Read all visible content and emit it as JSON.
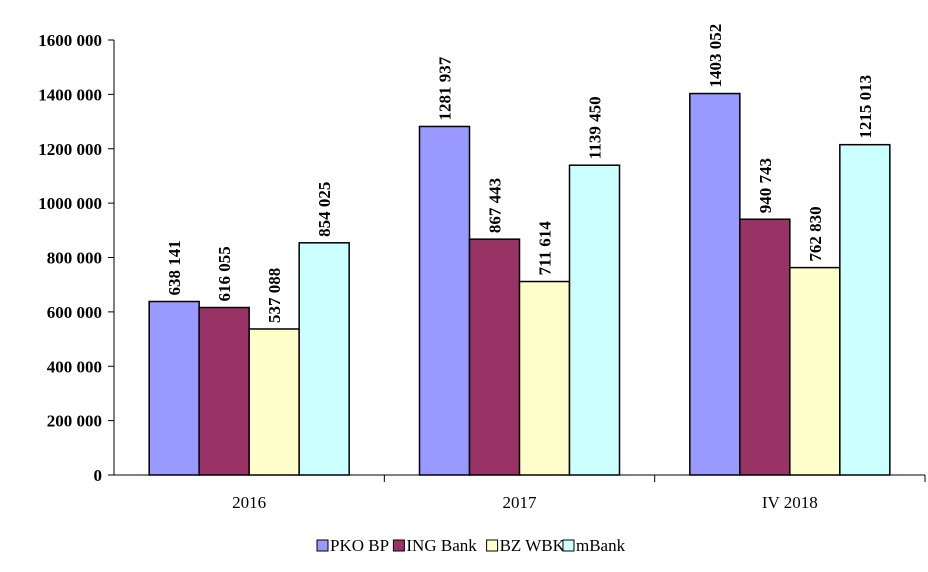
{
  "chart_data": {
    "type": "bar",
    "categories": [
      "2016",
      "2017",
      "IV 2018"
    ],
    "series": [
      {
        "name": "PKO BP",
        "values": [
          638141,
          1281937,
          1403052
        ],
        "labels": [
          "638 141",
          "1281 937",
          "1403 052"
        ],
        "color": "#9999FF"
      },
      {
        "name": "ING Bank",
        "values": [
          616055,
          867443,
          940743
        ],
        "labels": [
          "616 055",
          "867 443",
          "940 743"
        ],
        "color": "#993366"
      },
      {
        "name": "BZ WBK",
        "values": [
          537088,
          711614,
          762830
        ],
        "labels": [
          "537 088",
          "711 614",
          "762 830"
        ],
        "color": "#FFFFCC"
      },
      {
        "name": "mBank",
        "values": [
          854025,
          1139450,
          1215013
        ],
        "labels": [
          "854 025",
          "1139 450",
          "1215 013"
        ],
        "color": "#CCFFFF"
      }
    ],
    "ylim": [
      0,
      1600000
    ],
    "yticks": [
      0,
      200000,
      400000,
      600000,
      800000,
      1000000,
      1200000,
      1400000,
      1600000
    ],
    "ytick_labels": [
      "0",
      "200 000",
      "400 000",
      "600 000",
      "800 000",
      "1000 000",
      "1200 000",
      "1400 000",
      "1600 000"
    ],
    "grid": false,
    "legend_position": "bottom-center"
  }
}
